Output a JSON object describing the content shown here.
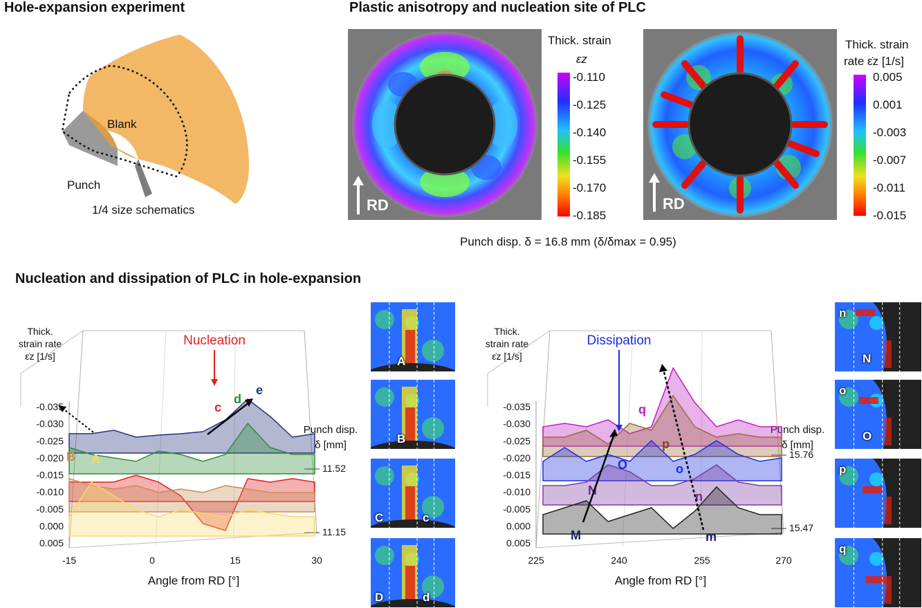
{
  "panel_a": {
    "title": "Hole-expansion experiment",
    "blank_label": "Blank",
    "punch_label": "Punch",
    "caption": "1/4 size schematics"
  },
  "panel_b": {
    "title": "Plastic anisotropy and nucleation site of PLC",
    "rd_label": "RD",
    "map1": {
      "colorbar_title_line1": "Thick. strain",
      "colorbar_title_line2": "εz",
      "ticks": [
        "-0.110",
        "-0.125",
        "-0.140",
        "-0.155",
        "-0.170",
        "-0.185"
      ]
    },
    "map2": {
      "colorbar_title_line1": "Thick. strain",
      "colorbar_title_line2": "rate ε̇z [1/s]",
      "ticks": [
        "0.005",
        "0.001",
        "-0.003",
        "-0.007",
        "-0.011",
        "-0.015"
      ]
    },
    "punch_caption": "Punch disp. δ = 16.8 mm (δ/δmax = 0.95)"
  },
  "panel_c": {
    "title": "Nucleation and dissipation of PLC in hole-expansion",
    "left_plot": {
      "annotation": "Nucleation",
      "ylabel_line1": "Thick.",
      "ylabel_line2": "strain rate",
      "ylabel_line3": "ε̇z [1/s]",
      "yticks": [
        "-0.035",
        "-0.030",
        "-0.025",
        "-0.020",
        "-0.015",
        "-0.010",
        "-0.005",
        "0.000",
        "0.005"
      ],
      "xticks": [
        "-15",
        "0",
        "15",
        "30"
      ],
      "xlabel": "Angle from RD [°]",
      "zlabel_line1": "Punch disp.",
      "zlabel_line2": "δ [mm]",
      "z_top": "11.52",
      "z_bottom": "11.15",
      "curve_labels": [
        "A",
        "B",
        "c",
        "d",
        "e"
      ]
    },
    "right_plot": {
      "annotation": "Dissipation",
      "ylabel_line1": "Thick.",
      "ylabel_line2": "strain rate",
      "ylabel_line3": "ε̇z [1/s]",
      "yticks": [
        "-0.035",
        "-0.030",
        "-0.025",
        "-0.020",
        "-0.015",
        "-0.010",
        "-0.005",
        "0.000",
        "0.005"
      ],
      "xticks": [
        "225",
        "240",
        "255",
        "270"
      ],
      "xlabel": "Angle from RD [°]",
      "zlabel_line1": "Punch disp.",
      "zlabel_line2": "δ [mm]",
      "z_top": "15.76",
      "z_bottom": "15.47",
      "curve_labels": [
        "M",
        "N",
        "O",
        "o",
        "n",
        "m",
        "p",
        "q"
      ]
    },
    "tiles_left": [
      {
        "tags": [
          "A"
        ]
      },
      {
        "tags": [
          "B"
        ]
      },
      {
        "tags": [
          "C",
          "c"
        ]
      },
      {
        "tags": [
          "D",
          "d"
        ]
      }
    ],
    "tiles_right": [
      {
        "tags": [
          "n",
          "N"
        ]
      },
      {
        "tags": [
          "o",
          "O"
        ]
      },
      {
        "tags": [
          "p"
        ]
      },
      {
        "tags": [
          "q"
        ]
      }
    ]
  },
  "colors": {
    "nucleation": "#e0201e",
    "dissipation": "#1a2fe0",
    "blank": "#f2b866",
    "series_A": "#f5d96a",
    "series_B": "#c98b58",
    "series_c": "#e0201e",
    "series_d": "#2e8b3a",
    "series_e": "#25307c"
  }
}
